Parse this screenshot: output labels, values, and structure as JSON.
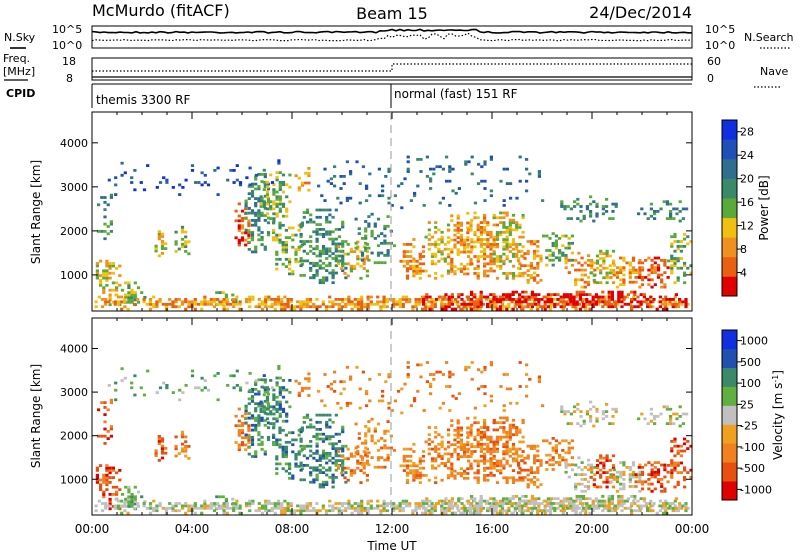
{
  "header": {
    "station": "McMurdo (fitACF)",
    "beam": "Beam 15",
    "date": "24/Dec/2014"
  },
  "strips": {
    "nsky_label": "N.Sky",
    "nsearch_label": "N.Search",
    "noise_ticks": [
      "10^5",
      "10^0"
    ],
    "freq_label_1": "Freq.",
    "freq_label_2": "[MHz]",
    "freq_ticks": [
      "18",
      "8"
    ],
    "nave_label": "Nave",
    "nave_ticks": [
      "60",
      "0"
    ],
    "cpid_label": "CPID",
    "cpid_segments": [
      "themis 3300 RF",
      "normal (fast) 151 RF"
    ]
  },
  "colors": {
    "power": [
      "#1030e0",
      "#1e50b8",
      "#2e6e8e",
      "#3a8a6a",
      "#5aaa3a",
      "#f0c010",
      "#f09020",
      "#e86010",
      "#e00000"
    ],
    "velocity": [
      "#1030e0",
      "#2050b0",
      "#3a8a6a",
      "#60b040",
      "#c0c0c0",
      "#f0a020",
      "#f08020",
      "#e85010",
      "#e00000"
    ],
    "ground_scatter": "#b8b8b8"
  },
  "chart_data": [
    {
      "type": "heatmap",
      "name": "power",
      "xlabel": "",
      "ylabel": "Slant Range [km]",
      "xlim": [
        "00:00",
        "24:00"
      ],
      "ylim": [
        180,
        4700
      ],
      "yticks": [
        1000,
        2000,
        3000,
        4000
      ],
      "colorbar_label": "Power [dB]",
      "colorbar_ticks": [
        4,
        8,
        12,
        16,
        20,
        24,
        28
      ],
      "colorbar_range": [
        0,
        30
      ]
    },
    {
      "type": "heatmap",
      "name": "velocity",
      "xlabel": "Time UT",
      "ylabel": "Slant Range [km]",
      "xlim": [
        "00:00",
        "24:00"
      ],
      "xticks": [
        "00:00",
        "04:00",
        "08:00",
        "12:00",
        "16:00",
        "20:00",
        "00:00"
      ],
      "ylim": [
        180,
        4700
      ],
      "yticks": [
        1000,
        2000,
        3000,
        4000
      ],
      "colorbar_label": "Velocity [m s^-1]",
      "colorbar_ticks": [
        "1000",
        "500",
        "100",
        "25",
        "-25",
        "-100",
        "-500",
        "-1000"
      ]
    }
  ]
}
